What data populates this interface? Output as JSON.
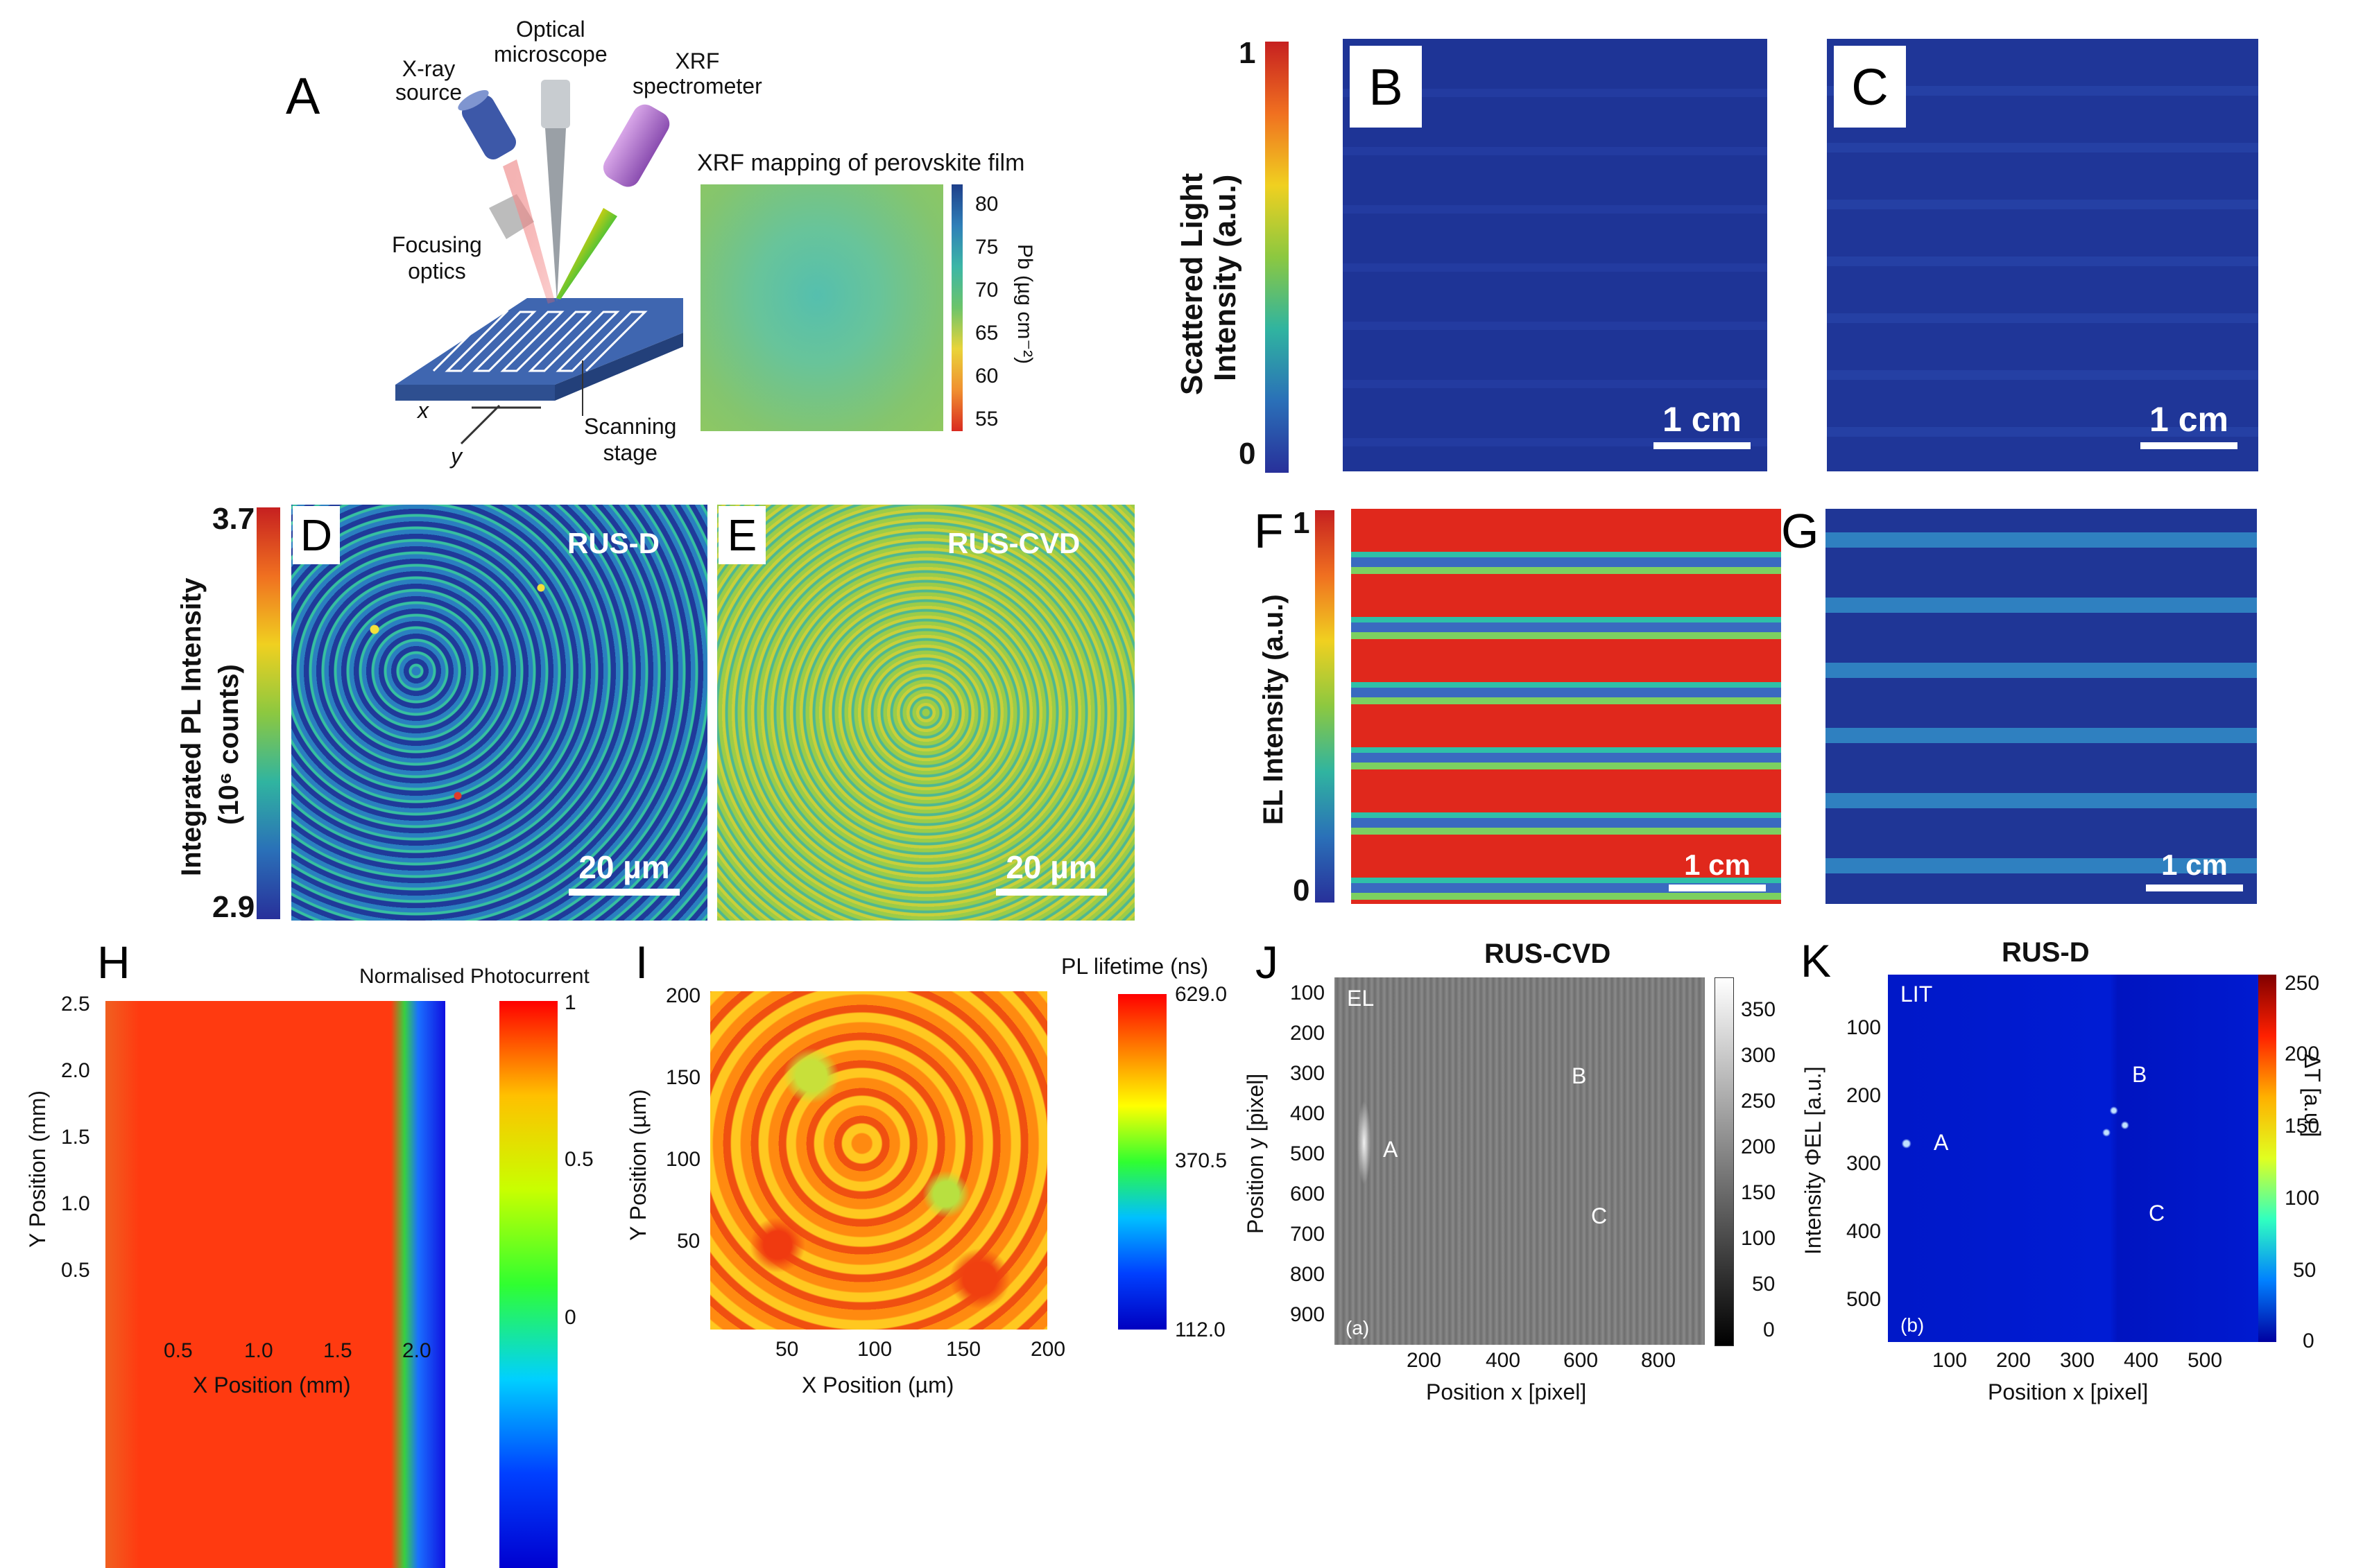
{
  "panel_a": {
    "letter": "A",
    "xray_source": [
      "X-ray",
      "source"
    ],
    "optical_microscope": [
      "Optical",
      "microscope"
    ],
    "xrf_spectrometer": [
      "XRF",
      "spectrometer"
    ],
    "focusing_optics": [
      "Focusing",
      "optics"
    ],
    "scanning_stage": [
      "Scanning",
      "stage"
    ],
    "axis_x": "x",
    "axis_y": "y",
    "xrf_map_title": "XRF mapping of perovskite film",
    "cbar_label": "Pb (µg cm⁻²)",
    "cbar_ticks": [
      "80",
      "75",
      "70",
      "65",
      "60",
      "55"
    ]
  },
  "panel_bc": {
    "cbar_label_line1": "Scattered Light",
    "cbar_label_line2": "Intensity (a.u.)",
    "cbar_max": "1",
    "cbar_min": "0",
    "b_letter": "B",
    "c_letter": "C",
    "scale_b": "1 cm",
    "scale_c": "1 cm"
  },
  "panel_de": {
    "cbar_label_line1": "Integrated PL Intensity",
    "cbar_label_line2": "(10⁶ counts)",
    "cbar_max": "3.7",
    "cbar_min": "2.9",
    "d_letter": "D",
    "e_letter": "E",
    "d_name": "RUS-D",
    "e_name": "RUS-CVD",
    "scale_d": "20 µm",
    "scale_e": "20 µm"
  },
  "panel_fg": {
    "f_letter": "F",
    "g_letter": "G",
    "cbar_label": "EL Intensity (a.u.)",
    "cbar_max": "1",
    "cbar_min": "0",
    "scale_f": "1 cm",
    "scale_g": "1 cm"
  },
  "panel_h": {
    "letter": "H",
    "cbar_title": "Normalised Photocurrent",
    "cbar_ticks": [
      "1",
      "0.5",
      "0"
    ],
    "ylabel": "Y Position (mm)",
    "xlabel": "X Position (mm)",
    "yticks": [
      "2.5",
      "2.0",
      "1.5",
      "1.0",
      "0.5"
    ],
    "xticks": [
      "0.5",
      "1.0",
      "1.5",
      "2.0"
    ]
  },
  "panel_i": {
    "letter": "I",
    "cbar_title": "PL lifetime (ns)",
    "cbar_ticks": [
      "629.0",
      "370.5",
      "112.0"
    ],
    "ylabel": "Y Position (µm)",
    "xlabel": "X Position (µm)",
    "yticks": [
      "200",
      "150",
      "100",
      "50"
    ],
    "xticks": [
      "50",
      "100",
      "150",
      "200"
    ]
  },
  "panel_j": {
    "letter": "J",
    "title": "RUS-CVD",
    "tag": "EL",
    "sub": "(a)",
    "labels": [
      "A",
      "B",
      "C"
    ],
    "ylabel": "Position y [pixel]",
    "xlabel": "Position x [pixel]",
    "yticks": [
      "100",
      "200",
      "300",
      "400",
      "500",
      "600",
      "700",
      "800",
      "900"
    ],
    "xticks": [
      "200",
      "400",
      "600",
      "800"
    ],
    "cbar_ticks": [
      "350",
      "300",
      "250",
      "200",
      "150",
      "100",
      "50",
      "0"
    ]
  },
  "panel_k": {
    "letter": "K",
    "title": "RUS-D",
    "tag": "LIT",
    "sub": "(b)",
    "labels": [
      "A",
      "B",
      "C"
    ],
    "ylabel": "Intensity ΦEL [a.u.]",
    "xlabel": "Position x [pixel]",
    "yticks": [
      "100",
      "200",
      "300",
      "400",
      "500"
    ],
    "xticks": [
      "100",
      "200",
      "300",
      "400",
      "500"
    ],
    "cbar_label": "ΔT [a.u.]",
    "cbar_ticks": [
      "250",
      "200",
      "150",
      "100",
      "50",
      "0"
    ]
  }
}
